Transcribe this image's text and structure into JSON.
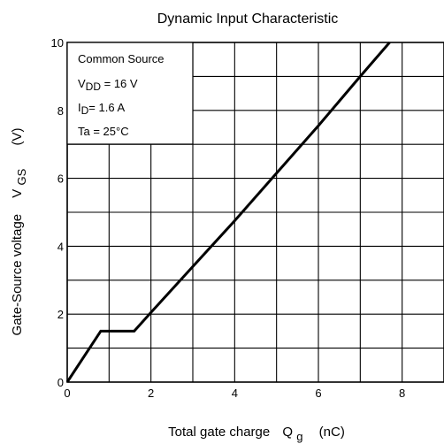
{
  "chart_data": {
    "type": "line",
    "title": "Dynamic Input Characteristic",
    "xlabel": {
      "main": "Total gate charge",
      "symbol": "Q",
      "subscript": "g",
      "unit": "(nC)"
    },
    "ylabel": {
      "main": "Gate-Source voltage",
      "symbol": "V",
      "subscript": "GS",
      "unit": "(V)"
    },
    "xlim": [
      0,
      9
    ],
    "ylim": [
      0,
      10
    ],
    "x_ticks": [
      0,
      2,
      4,
      6,
      8
    ],
    "y_ticks": [
      0,
      2,
      4,
      6,
      8,
      10
    ],
    "x_grid_step": 1,
    "y_grid_step": 1,
    "grid": true,
    "series": [
      {
        "x": [
          0,
          0.8,
          1.6,
          2.0,
          3.0,
          4.0,
          5.0,
          6.0,
          7.0,
          7.7
        ],
        "y": [
          0,
          1.5,
          1.5,
          2.05,
          3.4,
          4.75,
          6.15,
          7.55,
          9.0,
          10
        ]
      }
    ],
    "conditions": {
      "line1": "Common Source",
      "line2": {
        "prefix": "V",
        "sub": "DD",
        "rest": " = 16 V"
      },
      "line3": {
        "prefix": "I",
        "sub": "D",
        "rest": "= 1.6 A"
      },
      "line4": "Ta = 25°C"
    },
    "colors": {
      "line": "#000000",
      "grid": "#000000",
      "background": "#ffffff"
    }
  }
}
